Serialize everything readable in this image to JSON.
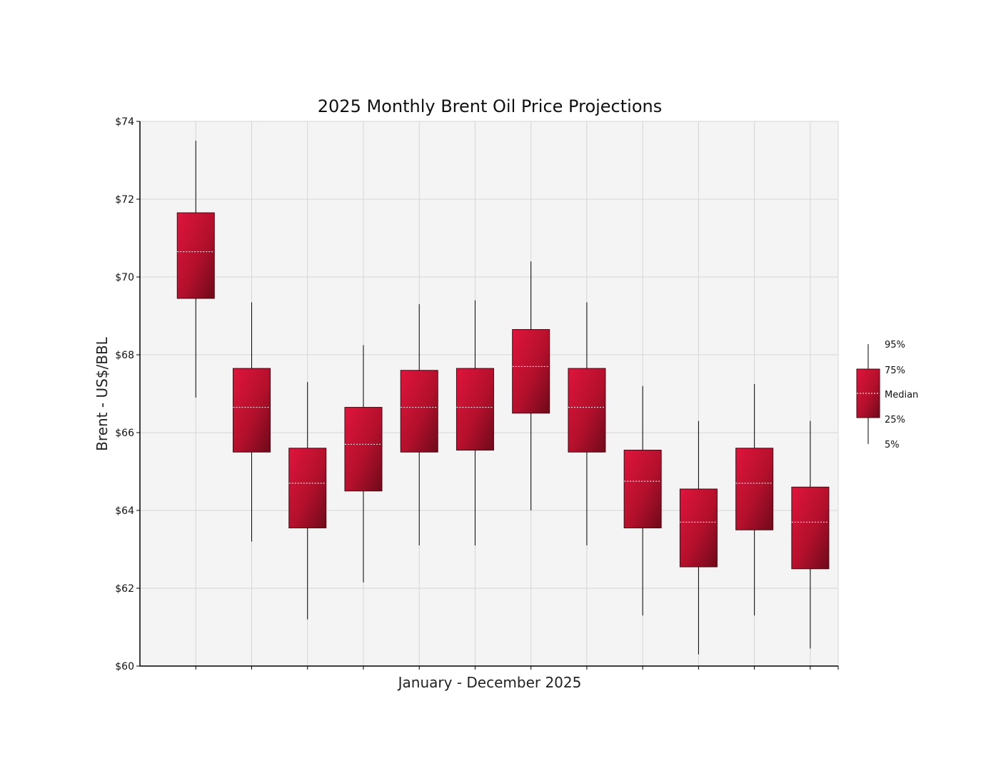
{
  "chart_data": {
    "type": "box",
    "title": "2025 Monthly Brent Oil Price Projections",
    "xlabel": "January - December 2025",
    "ylabel": "Brent - US$/BBL",
    "ylim": [
      60,
      74
    ],
    "ytick_step": 2,
    "ytick_prefix": "$",
    "grid": true,
    "legend_position": "right",
    "box_color": "#c8102e",
    "series": [
      {
        "p5": 66.9,
        "p25": 69.45,
        "median": 70.65,
        "p75": 71.65,
        "p95": 73.5
      },
      {
        "p5": 63.2,
        "p25": 65.5,
        "median": 66.65,
        "p75": 67.65,
        "p95": 69.35
      },
      {
        "p5": 61.2,
        "p25": 63.55,
        "median": 64.7,
        "p75": 65.6,
        "p95": 67.3
      },
      {
        "p5": 62.15,
        "p25": 64.5,
        "median": 65.7,
        "p75": 66.65,
        "p95": 68.25
      },
      {
        "p5": 63.1,
        "p25": 65.5,
        "median": 66.65,
        "p75": 67.6,
        "p95": 69.3
      },
      {
        "p5": 63.1,
        "p25": 65.55,
        "median": 66.65,
        "p75": 67.65,
        "p95": 69.4
      },
      {
        "p5": 64.0,
        "p25": 66.5,
        "median": 67.7,
        "p75": 68.65,
        "p95": 70.4
      },
      {
        "p5": 63.1,
        "p25": 65.5,
        "median": 66.65,
        "p75": 67.65,
        "p95": 69.35
      },
      {
        "p5": 61.3,
        "p25": 63.55,
        "median": 64.75,
        "p75": 65.55,
        "p95": 67.2
      },
      {
        "p5": 60.3,
        "p25": 62.55,
        "median": 63.7,
        "p75": 64.55,
        "p95": 66.3
      },
      {
        "p5": 61.3,
        "p25": 63.5,
        "median": 64.7,
        "p75": 65.6,
        "p95": 67.25
      },
      {
        "p5": 60.45,
        "p25": 62.5,
        "median": 63.7,
        "p75": 64.6,
        "p95": 66.3
      }
    ],
    "legend": {
      "p95": "95%",
      "p75": "75%",
      "median": "Median",
      "p25": "25%",
      "p5": "5%"
    }
  }
}
